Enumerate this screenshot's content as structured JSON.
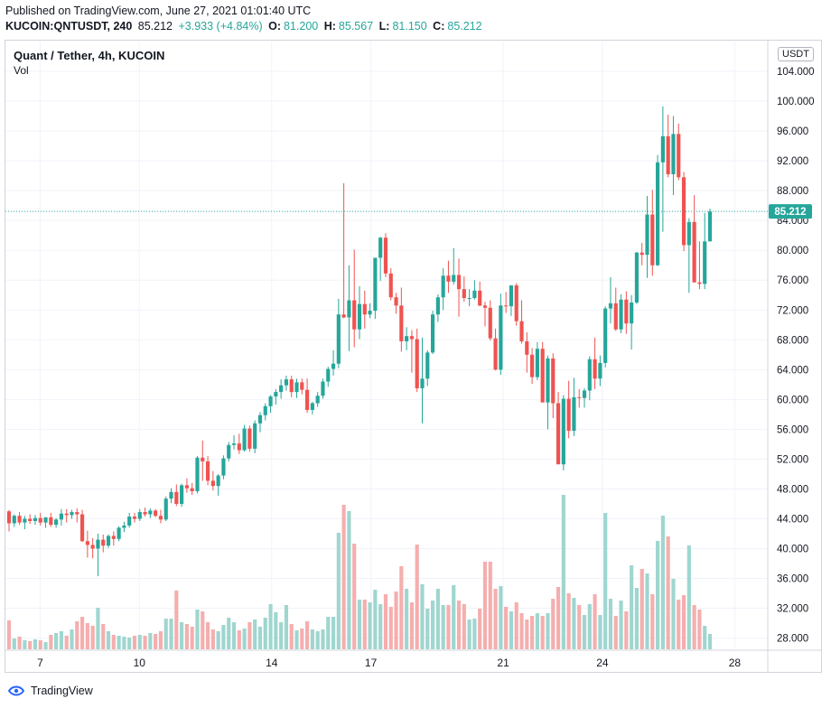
{
  "header": {
    "published": "Published on TradingView.com, June 27, 2021 01:01:40 UTC",
    "symbol": "KUCOIN:QNTUSDT, 240",
    "last": "85.212",
    "change": "+3.933 (+4.84%)",
    "o_label": "O:",
    "o_value": "81.200",
    "h_label": "H:",
    "h_value": "85.567",
    "l_label": "L:",
    "l_value": "81.150",
    "c_label": "C:",
    "c_value": "85.212"
  },
  "legend": {
    "title": "Quant / Tether, 4h, KUCOIN",
    "volume": "Vol"
  },
  "currency_badge": "USDT",
  "footer": {
    "brand": "TradingView"
  },
  "colors": {
    "up": "#26a69a",
    "down": "#ef5350",
    "up_vol": "#9fd6cf",
    "down_vol": "#f5aeae",
    "grid": "#f0f3fa",
    "axis_text": "#131722",
    "last_price": "#26a69a"
  },
  "chart_data": {
    "type": "candlestick",
    "ylim": [
      26.5,
      108.0
    ],
    "y_ticks": [
      "28.000",
      "32.000",
      "36.000",
      "40.000",
      "44.000",
      "48.000",
      "52.000",
      "56.000",
      "60.000",
      "64.000",
      "68.000",
      "72.000",
      "76.000",
      "80.000",
      "84.000",
      "88.000",
      "92.000",
      "96.000",
      "100.000",
      "104.000"
    ],
    "x_ticks": [
      {
        "label": "7",
        "day": 7
      },
      {
        "label": "10",
        "day": 10
      },
      {
        "label": "14",
        "day": 14
      },
      {
        "label": "17",
        "day": 17
      },
      {
        "label": "21",
        "day": 21
      },
      {
        "label": "24",
        "day": 24
      },
      {
        "label": "28",
        "day": 28
      }
    ],
    "day_range": [
      5.95,
      29.0
    ],
    "last_price": 85.212,
    "last_price_label": "85.212",
    "grid": true,
    "candles": [
      [
        45.0,
        45.2,
        42.3,
        43.4,
        0.32
      ],
      [
        43.4,
        44.6,
        42.9,
        44.4,
        0.12
      ],
      [
        44.4,
        44.9,
        43.2,
        43.5,
        0.14
      ],
      [
        43.5,
        44.4,
        42.6,
        44.0,
        0.1
      ],
      [
        44.0,
        44.6,
        43.3,
        43.7,
        0.09
      ],
      [
        43.7,
        44.5,
        43.2,
        44.1,
        0.11
      ],
      [
        44.1,
        44.8,
        43.1,
        43.5,
        0.1
      ],
      [
        43.5,
        44.2,
        42.8,
        44.2,
        0.08
      ],
      [
        44.2,
        44.8,
        42.9,
        43.2,
        0.16
      ],
      [
        43.2,
        44.1,
        42.8,
        43.9,
        0.18
      ],
      [
        43.9,
        45.3,
        43.1,
        44.7,
        0.2
      ],
      [
        44.7,
        45.3,
        43.5,
        44.5,
        0.15
      ],
      [
        44.5,
        45.2,
        44.0,
        44.9,
        0.22
      ],
      [
        44.9,
        45.4,
        43.5,
        44.6,
        0.31
      ],
      [
        44.6,
        45.2,
        40.9,
        41.0,
        0.36
      ],
      [
        41.0,
        42.4,
        38.8,
        40.5,
        0.29
      ],
      [
        40.5,
        41.4,
        38.7,
        40.0,
        0.26
      ],
      [
        40.0,
        42.0,
        36.3,
        41.2,
        0.46
      ],
      [
        41.2,
        41.9,
        39.5,
        40.4,
        0.28
      ],
      [
        40.4,
        41.9,
        40.1,
        41.7,
        0.2
      ],
      [
        41.7,
        42.3,
        40.4,
        41.3,
        0.16
      ],
      [
        41.3,
        43.0,
        41.0,
        42.8,
        0.15
      ],
      [
        42.8,
        43.6,
        42.2,
        43.1,
        0.14
      ],
      [
        43.1,
        44.8,
        42.8,
        44.3,
        0.13
      ],
      [
        44.3,
        44.8,
        43.5,
        44.0,
        0.15
      ],
      [
        44.0,
        45.3,
        43.7,
        44.9,
        0.16
      ],
      [
        44.9,
        45.5,
        44.3,
        44.6,
        0.15
      ],
      [
        44.6,
        45.4,
        44.1,
        45.1,
        0.18
      ],
      [
        45.1,
        45.3,
        44.2,
        44.4,
        0.17
      ],
      [
        44.4,
        45.2,
        43.4,
        43.9,
        0.2
      ],
      [
        43.9,
        47.0,
        43.7,
        46.7,
        0.34
      ],
      [
        46.7,
        48.1,
        46.1,
        47.6,
        0.34
      ],
      [
        47.6,
        48.6,
        45.7,
        46.0,
        0.65
      ],
      [
        46.0,
        48.7,
        45.6,
        48.5,
        0.3
      ],
      [
        48.5,
        49.4,
        47.5,
        48.1,
        0.28
      ],
      [
        48.1,
        48.8,
        47.2,
        47.7,
        0.25
      ],
      [
        47.7,
        52.4,
        47.4,
        52.2,
        0.44
      ],
      [
        52.2,
        54.5,
        49.1,
        51.7,
        0.42
      ],
      [
        51.7,
        52.4,
        48.5,
        49.1,
        0.3
      ],
      [
        49.1,
        50.4,
        47.8,
        48.4,
        0.22
      ],
      [
        48.4,
        50.0,
        47.1,
        49.8,
        0.2
      ],
      [
        49.8,
        52.5,
        49.3,
        52.1,
        0.27
      ],
      [
        52.1,
        54.3,
        51.7,
        53.9,
        0.35
      ],
      [
        53.9,
        55.2,
        53.3,
        54.1,
        0.3
      ],
      [
        54.1,
        55.4,
        52.7,
        53.2,
        0.21
      ],
      [
        53.2,
        56.6,
        53.0,
        56.1,
        0.23
      ],
      [
        56.1,
        56.5,
        53.0,
        53.4,
        0.3
      ],
      [
        53.4,
        57.2,
        52.8,
        56.8,
        0.33
      ],
      [
        56.8,
        58.3,
        55.6,
        57.9,
        0.25
      ],
      [
        57.9,
        59.5,
        57.2,
        59.1,
        0.35
      ],
      [
        59.1,
        60.6,
        58.2,
        60.4,
        0.5
      ],
      [
        60.4,
        61.4,
        59.3,
        61.0,
        0.41
      ],
      [
        61.0,
        62.7,
        60.1,
        61.9,
        0.3
      ],
      [
        61.9,
        63.2,
        61.2,
        62.7,
        0.49
      ],
      [
        62.7,
        63.2,
        60.3,
        61.0,
        0.28
      ],
      [
        61.0,
        62.8,
        60.2,
        62.3,
        0.21
      ],
      [
        62.3,
        62.8,
        60.7,
        61.3,
        0.23
      ],
      [
        61.3,
        62.8,
        58.2,
        58.6,
        0.31
      ],
      [
        58.6,
        59.7,
        58.0,
        59.5,
        0.22
      ],
      [
        59.5,
        61.0,
        59.0,
        60.5,
        0.2
      ],
      [
        60.5,
        62.8,
        60.1,
        62.4,
        0.22
      ],
      [
        62.4,
        64.4,
        61.7,
        64.1,
        0.36
      ],
      [
        64.1,
        66.6,
        63.2,
        64.8,
        0.36
      ],
      [
        64.8,
        73.5,
        64.2,
        71.4,
        1.29
      ],
      [
        71.4,
        89.0,
        70.9,
        71.0,
        1.6
      ],
      [
        71.0,
        78.0,
        66.5,
        73.3,
        1.53
      ],
      [
        73.3,
        80.1,
        67.0,
        69.4,
        1.17
      ],
      [
        69.4,
        75.2,
        68.1,
        72.8,
        0.55
      ],
      [
        72.8,
        74.6,
        69.5,
        71.4,
        0.55
      ],
      [
        71.4,
        72.9,
        70.9,
        71.9,
        0.52
      ],
      [
        71.9,
        78.9,
        70.8,
        79.0,
        0.66
      ],
      [
        79.0,
        81.8,
        75.9,
        81.7,
        0.5
      ],
      [
        81.7,
        82.3,
        76.4,
        76.9,
        0.61
      ],
      [
        76.9,
        77.6,
        73.3,
        73.7,
        0.47
      ],
      [
        73.7,
        74.3,
        71.5,
        72.6,
        0.64
      ],
      [
        72.6,
        75.0,
        66.4,
        67.8,
        0.92
      ],
      [
        67.8,
        69.7,
        66.6,
        68.5,
        0.67
      ],
      [
        68.5,
        69.3,
        63.6,
        68.1,
        0.52
      ],
      [
        68.1,
        69.5,
        61.0,
        61.5,
        1.16
      ],
      [
        61.5,
        68.3,
        56.8,
        62.8,
        0.72
      ],
      [
        62.8,
        66.6,
        61.8,
        66.3,
        0.45
      ],
      [
        66.3,
        71.9,
        66.1,
        71.4,
        0.54
      ],
      [
        71.4,
        74.1,
        70.4,
        73.7,
        0.67
      ],
      [
        73.7,
        77.6,
        72.0,
        76.6,
        0.49
      ],
      [
        76.6,
        78.6,
        74.3,
        75.8,
        0.49
      ],
      [
        75.8,
        80.3,
        75.4,
        76.7,
        0.71
      ],
      [
        76.7,
        78.9,
        71.1,
        74.8,
        0.54
      ],
      [
        74.8,
        76.5,
        73.1,
        73.6,
        0.5
      ],
      [
        73.6,
        74.8,
        72.5,
        73.6,
        0.33
      ],
      [
        73.6,
        76.0,
        73.4,
        74.6,
        0.34
      ],
      [
        74.6,
        75.8,
        72.5,
        72.6,
        0.45
      ],
      [
        72.6,
        73.1,
        69.8,
        72.3,
        0.97
      ],
      [
        72.3,
        73.3,
        67.9,
        68.2,
        0.97
      ],
      [
        68.2,
        69.5,
        63.9,
        64.0,
        0.67
      ],
      [
        64.0,
        74.2,
        63.3,
        72.6,
        0.7
      ],
      [
        72.6,
        74.4,
        71.6,
        72.5,
        0.47
      ],
      [
        72.5,
        75.3,
        71.2,
        75.3,
        0.42
      ],
      [
        75.3,
        75.6,
        69.9,
        70.5,
        0.52
      ],
      [
        70.5,
        73.3,
        67.5,
        67.8,
        0.4
      ],
      [
        67.8,
        69.0,
        63.6,
        66.0,
        0.33
      ],
      [
        66.0,
        66.9,
        62.1,
        63.0,
        0.37
      ],
      [
        63.0,
        67.7,
        62.6,
        66.8,
        0.4
      ],
      [
        66.8,
        67.7,
        59.7,
        59.6,
        0.37
      ],
      [
        59.6,
        65.9,
        56.0,
        65.5,
        0.4
      ],
      [
        65.5,
        66.2,
        57.5,
        59.5,
        0.56
      ],
      [
        59.5,
        61.0,
        51.6,
        51.3,
        0.69
      ],
      [
        51.3,
        60.6,
        50.5,
        60.1,
        1.71
      ],
      [
        60.1,
        62.5,
        54.8,
        55.8,
        0.62
      ],
      [
        55.8,
        62.9,
        55.1,
        60.3,
        0.57
      ],
      [
        60.3,
        61.4,
        58.9,
        60.2,
        0.49
      ],
      [
        60.2,
        61.5,
        58.9,
        61.2,
        0.38
      ],
      [
        61.2,
        65.8,
        59.9,
        65.4,
        0.5
      ],
      [
        65.4,
        68.3,
        61.4,
        62.8,
        0.61
      ],
      [
        62.8,
        65.9,
        61.8,
        64.9,
        0.38
      ],
      [
        64.9,
        72.5,
        64.3,
        72.2,
        1.51
      ],
      [
        72.2,
        76.4,
        70.2,
        72.9,
        0.56
      ],
      [
        72.9,
        75.0,
        69.2,
        69.4,
        0.37
      ],
      [
        69.4,
        74.1,
        68.9,
        73.4,
        0.54
      ],
      [
        73.4,
        74.5,
        68.8,
        70.2,
        0.42
      ],
      [
        70.2,
        74.0,
        66.7,
        73.0,
        0.93
      ],
      [
        73.0,
        79.8,
        72.8,
        79.7,
        0.68
      ],
      [
        79.7,
        81.0,
        78.0,
        79.4,
        0.89
      ],
      [
        79.4,
        87.3,
        76.3,
        84.8,
        0.84
      ],
      [
        84.8,
        88.1,
        76.6,
        78.0,
        0.61
      ],
      [
        78.0,
        92.8,
        77.9,
        91.8,
        1.2
      ],
      [
        91.8,
        99.3,
        82.5,
        95.3,
        1.48
      ],
      [
        95.3,
        98.2,
        89.8,
        90.2,
        1.25
      ],
      [
        90.2,
        98.0,
        87.4,
        95.6,
        0.78
      ],
      [
        95.6,
        97.0,
        89.4,
        89.8,
        0.55
      ],
      [
        89.8,
        90.5,
        79.9,
        80.7,
        0.6
      ],
      [
        80.7,
        84.3,
        74.3,
        83.8,
        1.15
      ],
      [
        83.8,
        87.4,
        76.5,
        75.7,
        0.49
      ],
      [
        75.7,
        81.2,
        74.8,
        75.5,
        0.44
      ],
      [
        75.5,
        85.0,
        74.8,
        81.2,
        0.26
      ],
      [
        81.2,
        85.6,
        81.2,
        85.2,
        0.17
      ]
    ]
  }
}
